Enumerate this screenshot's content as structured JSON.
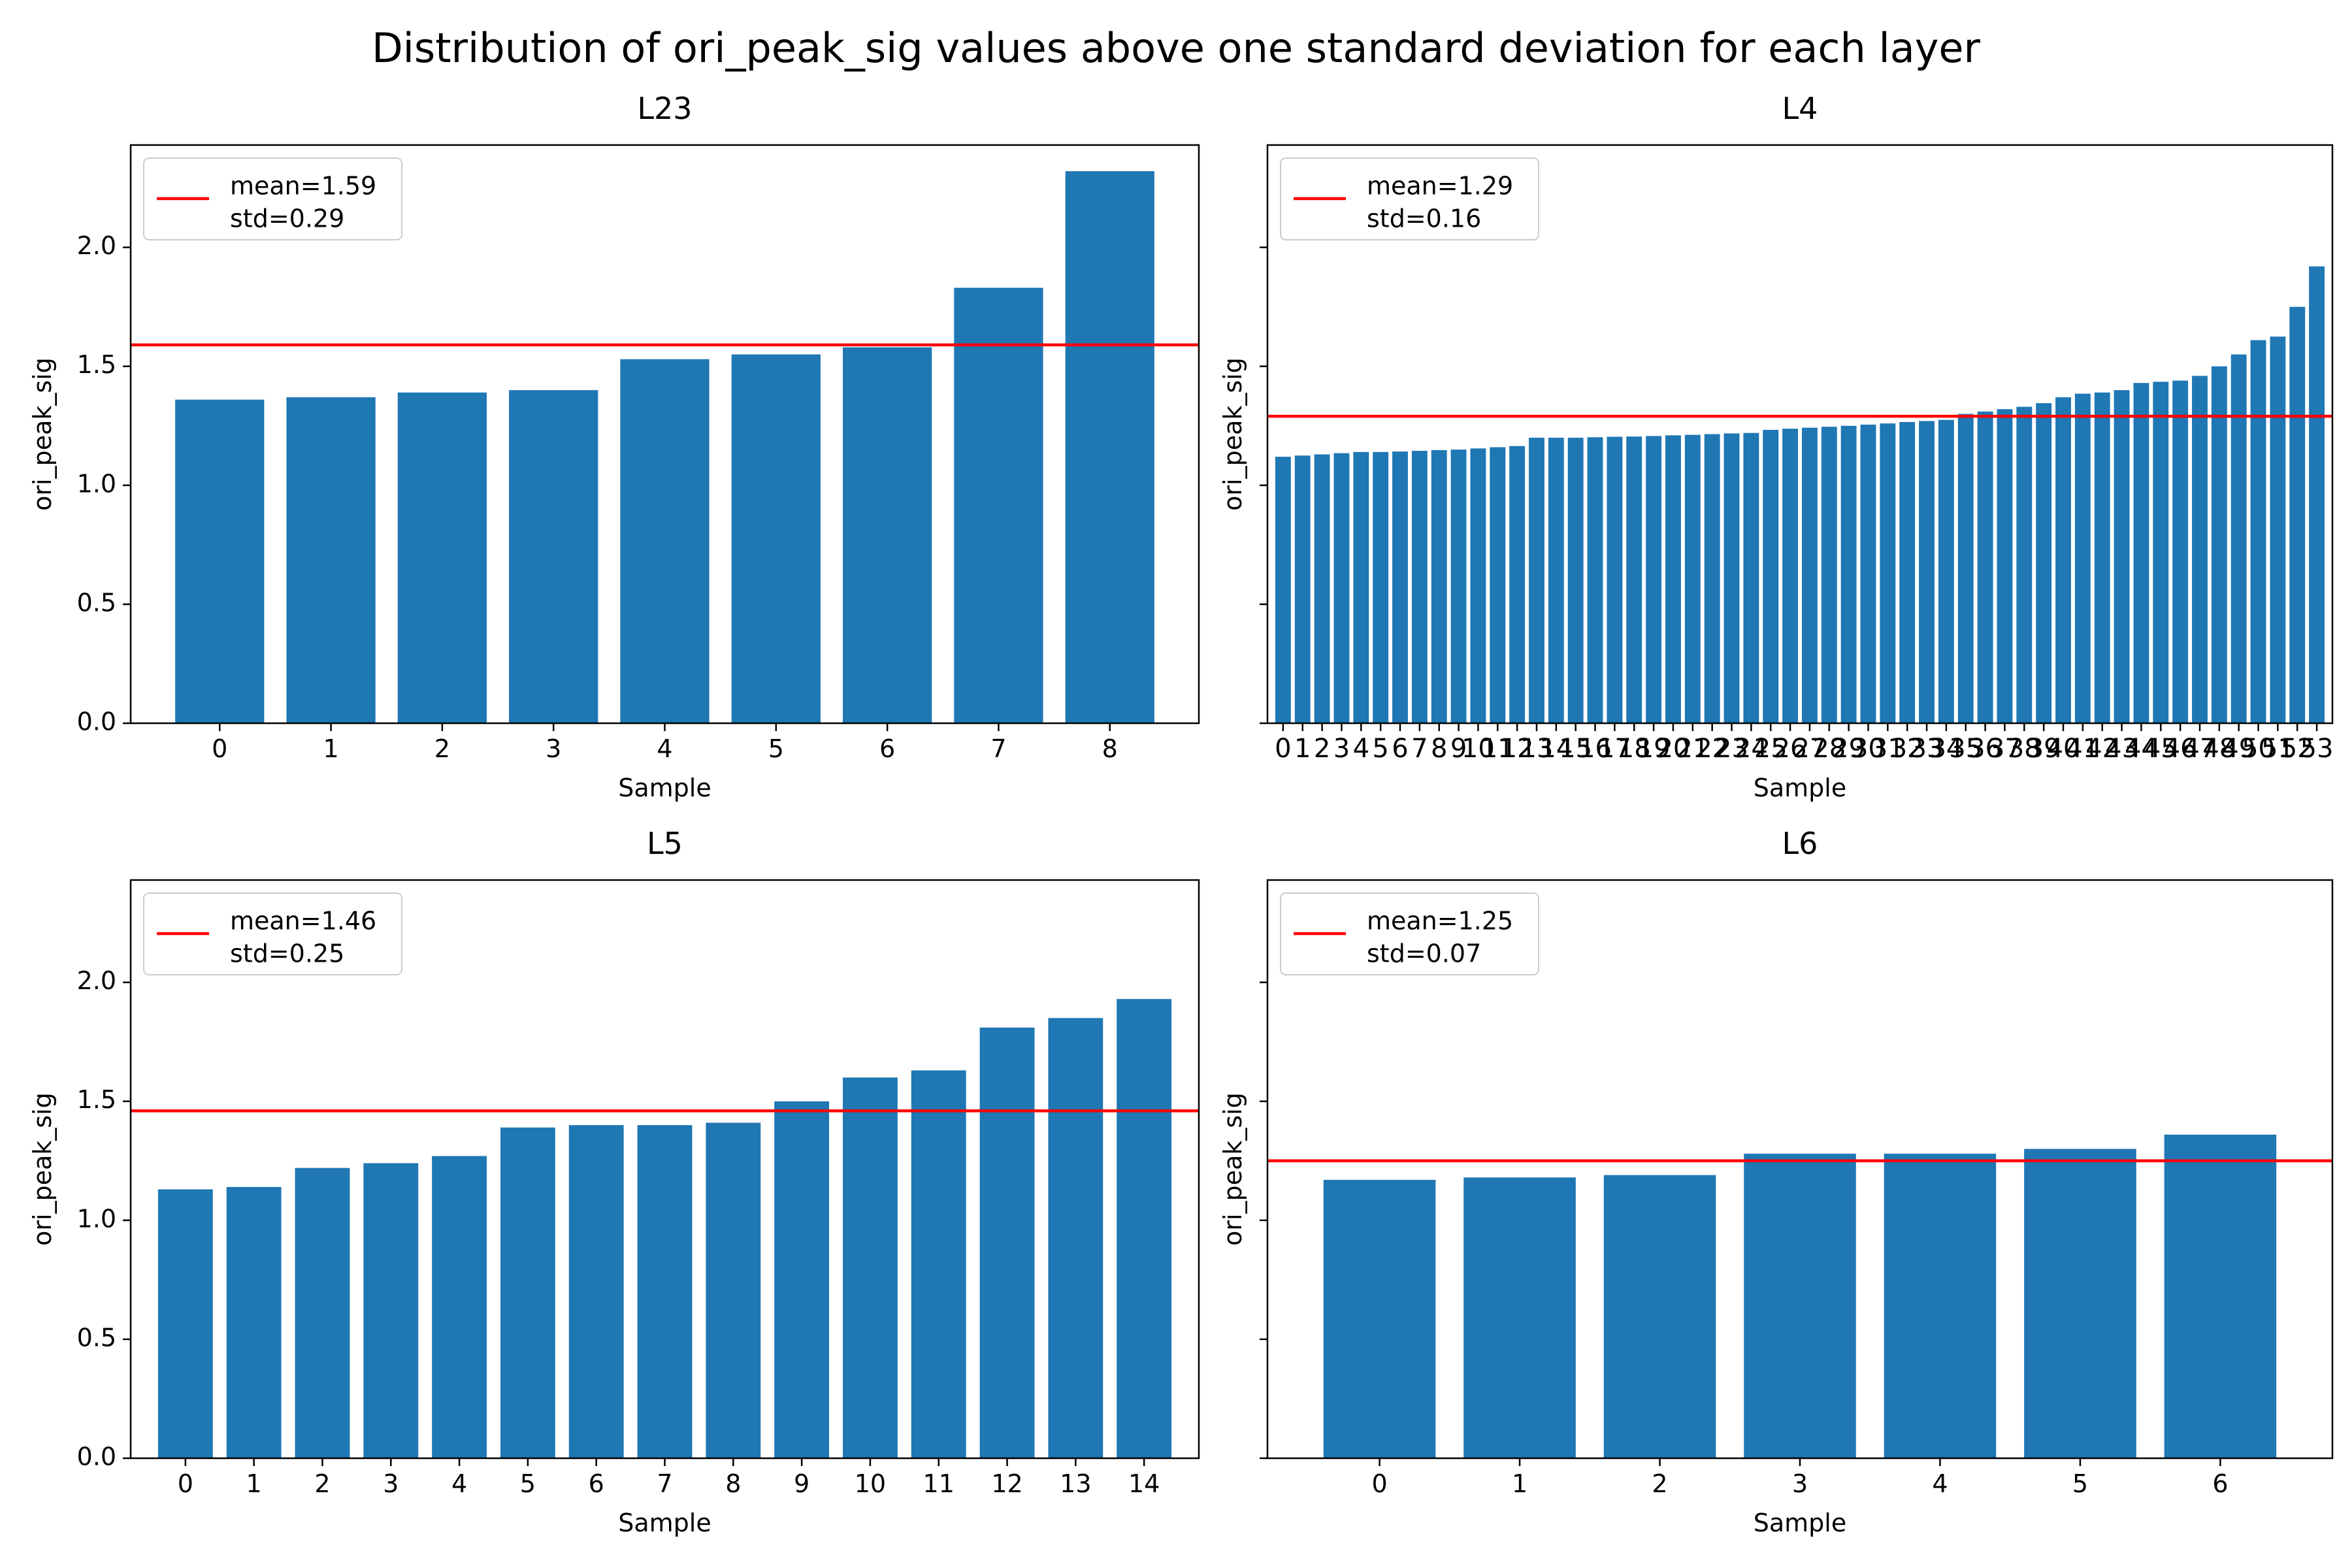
{
  "figure": {
    "title": "Distribution of ori_peak_sig values above one standard deviation for each layer"
  },
  "colors": {
    "bar": "#1f77b4",
    "mean_line": "#ff0000",
    "axis": "#000000",
    "background": "#ffffff"
  },
  "chart_data": [
    {
      "type": "bar",
      "title": "L23",
      "xlabel": "Sample",
      "ylabel": "ori_peak_sig",
      "categories": [
        "0",
        "1",
        "2",
        "3",
        "4",
        "5",
        "6",
        "7",
        "8"
      ],
      "values": [
        1.36,
        1.37,
        1.39,
        1.4,
        1.53,
        1.55,
        1.58,
        1.83,
        2.32
      ],
      "ylim": [
        0,
        2.43
      ],
      "yticks": [
        0.0,
        0.5,
        1.0,
        1.5,
        2.0
      ],
      "ytick_labels": [
        "0.0",
        "0.5",
        "1.0",
        "1.5",
        "2.0"
      ],
      "show_ytick_labels": true,
      "mean": 1.59,
      "legend": {
        "line1": "mean=1.59",
        "line2": "std=0.29",
        "location": "upper-left"
      },
      "grid": false
    },
    {
      "type": "bar",
      "title": "L4",
      "xlabel": "Sample",
      "ylabel": "ori_peak_sig",
      "categories": [
        "0",
        "1",
        "2",
        "3",
        "4",
        "5",
        "6",
        "7",
        "8",
        "9",
        "10",
        "11",
        "12",
        "13",
        "14",
        "15",
        "16",
        "17",
        "18",
        "19",
        "20",
        "21",
        "22",
        "23",
        "24",
        "25",
        "26",
        "27",
        "28",
        "29",
        "30",
        "31",
        "32",
        "33",
        "34",
        "35",
        "36",
        "37",
        "38",
        "39",
        "40",
        "41",
        "42",
        "43",
        "44",
        "45",
        "46",
        "47",
        "48",
        "49",
        "50",
        "51",
        "52",
        "53"
      ],
      "values": [
        1.12,
        1.125,
        1.13,
        1.135,
        1.14,
        1.14,
        1.142,
        1.145,
        1.148,
        1.15,
        1.155,
        1.16,
        1.165,
        1.2,
        1.2,
        1.2,
        1.202,
        1.204,
        1.205,
        1.207,
        1.21,
        1.212,
        1.215,
        1.218,
        1.22,
        1.233,
        1.238,
        1.242,
        1.246,
        1.25,
        1.255,
        1.26,
        1.266,
        1.27,
        1.275,
        1.3,
        1.31,
        1.32,
        1.33,
        1.345,
        1.37,
        1.385,
        1.39,
        1.4,
        1.43,
        1.435,
        1.44,
        1.46,
        1.5,
        1.55,
        1.61,
        1.625,
        1.75,
        1.92
      ],
      "ylim": [
        0,
        2.43
      ],
      "yticks": [
        0.0,
        0.5,
        1.0,
        1.5,
        2.0
      ],
      "ytick_labels": [
        "0.0",
        "0.5",
        "1.0",
        "1.5",
        "2.0"
      ],
      "show_ytick_labels": false,
      "mean": 1.29,
      "legend": {
        "line1": "mean=1.29",
        "line2": "std=0.16",
        "location": "upper-left"
      },
      "grid": false
    },
    {
      "type": "bar",
      "title": "L5",
      "xlabel": "Sample",
      "ylabel": "ori_peak_sig",
      "categories": [
        "0",
        "1",
        "2",
        "3",
        "4",
        "5",
        "6",
        "7",
        "8",
        "9",
        "10",
        "11",
        "12",
        "13",
        "14"
      ],
      "values": [
        1.13,
        1.14,
        1.22,
        1.24,
        1.27,
        1.39,
        1.4,
        1.4,
        1.41,
        1.5,
        1.6,
        1.63,
        1.81,
        1.85,
        1.93
      ],
      "ylim": [
        0,
        2.43
      ],
      "yticks": [
        0.0,
        0.5,
        1.0,
        1.5,
        2.0
      ],
      "ytick_labels": [
        "0.0",
        "0.5",
        "1.0",
        "1.5",
        "2.0"
      ],
      "show_ytick_labels": true,
      "mean": 1.46,
      "legend": {
        "line1": "mean=1.46",
        "line2": "std=0.25",
        "location": "upper-left"
      },
      "grid": false
    },
    {
      "type": "bar",
      "title": "L6",
      "xlabel": "Sample",
      "ylabel": "ori_peak_sig",
      "categories": [
        "0",
        "1",
        "2",
        "3",
        "4",
        "5",
        "6"
      ],
      "values": [
        1.17,
        1.18,
        1.19,
        1.28,
        1.28,
        1.3,
        1.36
      ],
      "ylim": [
        0,
        2.43
      ],
      "yticks": [
        0.0,
        0.5,
        1.0,
        1.5,
        2.0
      ],
      "ytick_labels": [
        "0.0",
        "0.5",
        "1.0",
        "1.5",
        "2.0"
      ],
      "show_ytick_labels": false,
      "mean": 1.25,
      "legend": {
        "line1": "mean=1.25",
        "line2": "std=0.07",
        "location": "upper-left"
      },
      "grid": false
    }
  ]
}
